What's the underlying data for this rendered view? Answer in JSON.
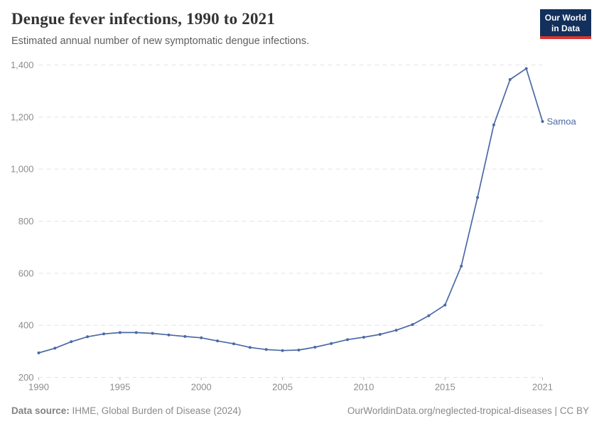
{
  "header": {
    "title": "Dengue fever infections, 1990 to 2021",
    "subtitle": "Estimated annual number of new symptomatic dengue infections."
  },
  "logo": {
    "line1": "Our World",
    "line2": "in Data",
    "bg_color": "#12305b",
    "accent_color": "#d7352e"
  },
  "chart_data": {
    "type": "line",
    "title": "Dengue fever infections, 1990 to 2021",
    "xlabel": "",
    "ylabel": "",
    "x": [
      1990,
      1991,
      1992,
      1993,
      1994,
      1995,
      1996,
      1997,
      1998,
      1999,
      2000,
      2001,
      2002,
      2003,
      2004,
      2005,
      2006,
      2007,
      2008,
      2009,
      2010,
      2011,
      2012,
      2013,
      2014,
      2015,
      2016,
      2017,
      2018,
      2019,
      2020,
      2021
    ],
    "series": [
      {
        "name": "Samoa",
        "color": "#4a69a5",
        "values": [
          294,
          312,
          337,
          356,
          367,
          372,
          372,
          369,
          363,
          357,
          352,
          340,
          329,
          315,
          307,
          303,
          305,
          316,
          330,
          345,
          354,
          365,
          381,
          403,
          437,
          478,
          627,
          891,
          1170,
          1344,
          1386,
          1183
        ]
      }
    ],
    "xlim": [
      1990,
      2021
    ],
    "ylim": [
      200,
      1400
    ],
    "x_ticks": [
      1990,
      1995,
      2000,
      2005,
      2010,
      2015,
      2021
    ],
    "y_ticks": [
      200,
      400,
      600,
      800,
      1000,
      1200,
      1400
    ],
    "grid": "dashed-horizontal",
    "legend": "end-of-line-label",
    "grid_color": "#e3e3e3",
    "tick_label_color": "#8c8c8c",
    "tick_mark_color": "#b5b5b5"
  },
  "footer": {
    "source_label": "Data source:",
    "source_text": " IHME, Global Burden of Disease (2024)",
    "credit": "OurWorldinData.org/neglected-tropical-diseases | CC BY"
  }
}
